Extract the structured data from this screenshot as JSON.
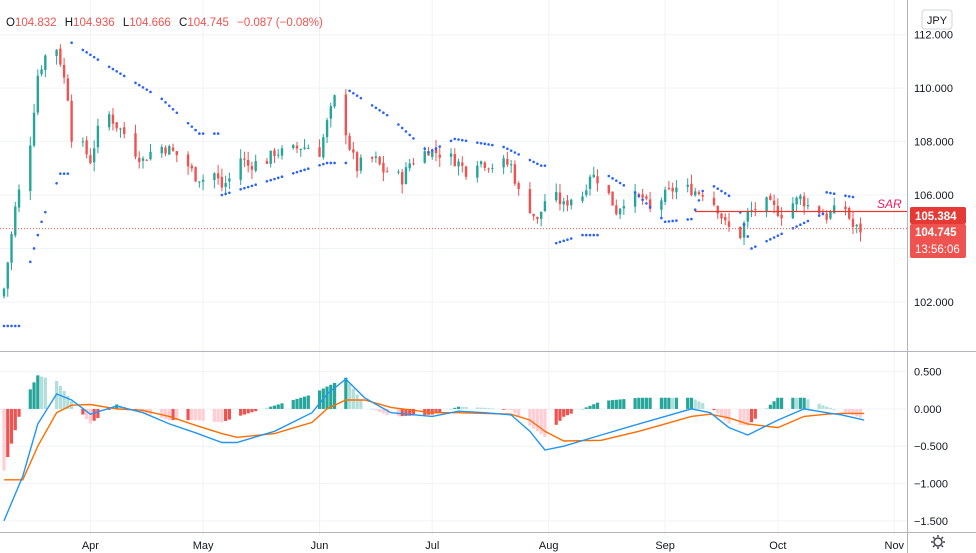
{
  "legend": {
    "open_key": "O",
    "open": "104.832",
    "high_key": "H",
    "high": "104.936",
    "low_key": "L",
    "low": "104.666",
    "close_key": "C",
    "close": "104.745",
    "change": "−0.087 (−0.08%)"
  },
  "currency_button": "JPY",
  "sar_label": "SAR",
  "badges": {
    "sar_value": "105.384",
    "last_price": "104.745",
    "countdown": "13:56:06"
  },
  "colors": {
    "up": "#26a69a",
    "down": "#ef5350",
    "sar": "#2962ff",
    "macd": "#2196f3",
    "signal": "#ff6d00",
    "hist_up_strong": "#26a69a",
    "hist_up_weak": "#b2dfdb",
    "hist_down_strong": "#ef5350",
    "hist_down_weak": "#ffcdd2",
    "sar_line": "#e53935",
    "last_price": "#ef5350",
    "grid": "#f0f3fa"
  },
  "settings_icon": "gear-icon",
  "chart_data": [
    {
      "type": "candlestick",
      "price_axis_ticks": [
        "102.000",
        "104.000",
        "106.000",
        "108.000",
        "110.000",
        "112.000"
      ],
      "x_tick_labels": [
        "Apr",
        "May",
        "Jun",
        "Jul",
        "Aug",
        "Sep",
        "Oct",
        "Nov"
      ],
      "ylim": [
        100.2,
        113.0
      ],
      "grid": true,
      "close_path": [
        [
          "2020-03-09",
          102.5
        ],
        [
          "2020-03-12",
          105.5
        ],
        [
          "2020-03-16",
          108.0
        ],
        [
          "2020-03-18",
          110.5
        ],
        [
          "2020-03-20",
          111.2
        ],
        [
          "2020-03-23",
          111.5
        ],
        [
          "2020-03-24",
          111.0
        ],
        [
          "2020-03-26",
          109.7
        ],
        [
          "2020-03-27",
          108.2
        ],
        [
          "2020-03-30",
          107.8
        ],
        [
          "2020-04-01",
          107.3
        ],
        [
          "2020-04-03",
          108.4
        ],
        [
          "2020-04-06",
          109.0
        ],
        [
          "2020-04-08",
          108.6
        ],
        [
          "2020-04-10",
          108.3
        ],
        [
          "2020-04-13",
          107.6
        ],
        [
          "2020-04-15",
          107.3
        ],
        [
          "2020-04-17",
          107.6
        ],
        [
          "2020-04-20",
          107.8
        ],
        [
          "2020-04-22",
          107.7
        ],
        [
          "2020-04-24",
          107.5
        ],
        [
          "2020-04-27",
          107.1
        ],
        [
          "2020-04-29",
          106.7
        ],
        [
          "2020-05-01",
          106.6
        ],
        [
          "2020-05-04",
          106.8
        ],
        [
          "2020-05-06",
          106.3
        ],
        [
          "2020-05-08",
          106.6
        ],
        [
          "2020-05-11",
          107.4
        ],
        [
          "2020-05-13",
          107.1
        ],
        [
          "2020-05-15",
          107.2
        ],
        [
          "2020-05-18",
          107.3
        ],
        [
          "2020-05-20",
          107.6
        ],
        [
          "2020-05-22",
          107.6
        ],
        [
          "2020-05-25",
          107.7
        ],
        [
          "2020-05-27",
          107.8
        ],
        [
          "2020-05-29",
          107.8
        ],
        [
          "2020-06-01",
          107.6
        ],
        [
          "2020-06-03",
          108.7
        ],
        [
          "2020-06-05",
          109.6
        ],
        [
          "2020-06-08",
          108.4
        ],
        [
          "2020-06-09",
          107.8
        ],
        [
          "2020-06-11",
          107.0
        ],
        [
          "2020-06-13",
          107.4
        ],
        [
          "2020-06-16",
          107.3
        ],
        [
          "2020-06-18",
          106.9
        ],
        [
          "2020-06-20",
          106.9
        ],
        [
          "2020-06-23",
          106.6
        ],
        [
          "2020-06-25",
          107.2
        ],
        [
          "2020-06-27",
          107.4
        ],
        [
          "2020-06-30",
          107.7
        ],
        [
          "2020-07-02",
          107.6
        ],
        [
          "2020-07-06",
          107.4
        ],
        [
          "2020-07-08",
          107.2
        ],
        [
          "2020-07-10",
          106.9
        ],
        [
          "2020-07-13",
          107.3
        ],
        [
          "2020-07-15",
          107.2
        ],
        [
          "2020-07-17",
          107.1
        ],
        [
          "2020-07-20",
          107.2
        ],
        [
          "2020-07-22",
          107.1
        ],
        [
          "2020-07-24",
          106.1
        ],
        [
          "2020-07-27",
          105.5
        ],
        [
          "2020-07-29",
          105.0
        ],
        [
          "2020-07-31",
          105.8
        ],
        [
          "2020-08-03",
          105.9
        ],
        [
          "2020-08-05",
          105.6
        ],
        [
          "2020-08-07",
          105.9
        ],
        [
          "2020-08-10",
          106.0
        ],
        [
          "2020-08-12",
          106.8
        ],
        [
          "2020-08-14",
          106.6
        ],
        [
          "2020-08-17",
          106.0
        ],
        [
          "2020-08-19",
          105.4
        ],
        [
          "2020-08-21",
          105.8
        ],
        [
          "2020-08-24",
          105.9
        ],
        [
          "2020-08-26",
          105.9
        ],
        [
          "2020-08-28",
          105.4
        ],
        [
          "2020-09-01",
          106.0
        ],
        [
          "2020-09-03",
          106.2
        ],
        [
          "2020-09-05",
          106.3
        ],
        [
          "2020-09-08",
          106.2
        ],
        [
          "2020-09-10",
          106.1
        ],
        [
          "2020-09-12",
          106.1
        ],
        [
          "2020-09-15",
          105.5
        ],
        [
          "2020-09-17",
          104.9
        ],
        [
          "2020-09-19",
          104.6
        ],
        [
          "2020-09-21",
          104.5
        ],
        [
          "2020-09-23",
          105.3
        ],
        [
          "2020-09-25",
          105.5
        ],
        [
          "2020-09-28",
          105.7
        ],
        [
          "2020-09-30",
          105.5
        ],
        [
          "2020-10-02",
          105.3
        ],
        [
          "2020-10-05",
          105.7
        ],
        [
          "2020-10-07",
          105.9
        ],
        [
          "2020-10-09",
          105.6
        ],
        [
          "2020-10-12",
          105.4
        ],
        [
          "2020-10-14",
          105.2
        ],
        [
          "2020-10-16",
          105.4
        ],
        [
          "2020-10-19",
          105.5
        ],
        [
          "2020-10-21",
          104.8
        ],
        [
          "2020-10-23",
          104.7
        ]
      ],
      "sar": [
        [
          "2020-03-09",
          101.1
        ],
        [
          "2020-03-16",
          103.5
        ],
        [
          "2020-03-19",
          105.0
        ],
        [
          "2020-03-24",
          106.8
        ],
        [
          "2020-03-27",
          111.7
        ],
        [
          "2020-04-06",
          110.8
        ],
        [
          "2020-04-20",
          109.6
        ],
        [
          "2020-04-30",
          108.3
        ],
        [
          "2020-05-06",
          106.0
        ],
        [
          "2020-05-20",
          106.6
        ],
        [
          "2020-06-03",
          107.2
        ],
        [
          "2020-06-09",
          109.9
        ],
        [
          "2020-06-20",
          108.9
        ],
        [
          "2020-06-30",
          107.6
        ],
        [
          "2020-07-07",
          108.1
        ],
        [
          "2020-07-20",
          107.8
        ],
        [
          "2020-07-30",
          107.1
        ],
        [
          "2020-08-03",
          104.2
        ],
        [
          "2020-08-10",
          104.5
        ],
        [
          "2020-08-16",
          106.8
        ],
        [
          "2020-08-24",
          106.1
        ],
        [
          "2020-09-01",
          105.0
        ],
        [
          "2020-09-08",
          105.1
        ],
        [
          "2020-09-12",
          106.5
        ],
        [
          "2020-09-20",
          105.8
        ],
        [
          "2020-09-24",
          104.0
        ],
        [
          "2020-10-13",
          105.3
        ],
        [
          "2020-10-14",
          106.1
        ],
        [
          "2020-10-22",
          105.9
        ]
      ],
      "sar_marker_value": 105.384,
      "last_price": 104.745
    },
    {
      "type": "macd",
      "y_tick_labels": [
        "0.500",
        "0.000",
        "−0.500",
        "−1.000",
        "−1.500"
      ],
      "ylim": [
        -1.65,
        0.75
      ],
      "grid": true,
      "macd": [
        [
          "2020-03-09",
          -1.5
        ],
        [
          "2020-03-14",
          -0.9
        ],
        [
          "2020-03-18",
          -0.2
        ],
        [
          "2020-03-23",
          0.2
        ],
        [
          "2020-03-27",
          0.12
        ],
        [
          "2020-04-01",
          -0.07
        ],
        [
          "2020-04-08",
          0.04
        ],
        [
          "2020-04-15",
          -0.05
        ],
        [
          "2020-04-22",
          -0.2
        ],
        [
          "2020-04-29",
          -0.32
        ],
        [
          "2020-05-06",
          -0.45
        ],
        [
          "2020-05-10",
          -0.45
        ],
        [
          "2020-05-20",
          -0.3
        ],
        [
          "2020-05-30",
          -0.05
        ],
        [
          "2020-06-03",
          0.2
        ],
        [
          "2020-06-08",
          0.4
        ],
        [
          "2020-06-13",
          0.15
        ],
        [
          "2020-06-20",
          -0.05
        ],
        [
          "2020-07-01",
          -0.1
        ],
        [
          "2020-07-08",
          -0.03
        ],
        [
          "2020-07-15",
          -0.05
        ],
        [
          "2020-07-22",
          -0.08
        ],
        [
          "2020-07-27",
          -0.3
        ],
        [
          "2020-07-31",
          -0.55
        ],
        [
          "2020-08-05",
          -0.5
        ],
        [
          "2020-08-15",
          -0.35
        ],
        [
          "2020-08-25",
          -0.2
        ],
        [
          "2020-09-01",
          -0.1
        ],
        [
          "2020-09-08",
          0.0
        ],
        [
          "2020-09-13",
          -0.05
        ],
        [
          "2020-09-18",
          -0.25
        ],
        [
          "2020-09-23",
          -0.35
        ],
        [
          "2020-10-01",
          -0.15
        ],
        [
          "2020-10-08",
          0.0
        ],
        [
          "2020-10-14",
          -0.05
        ],
        [
          "2020-10-18",
          -0.08
        ],
        [
          "2020-10-24",
          -0.15
        ]
      ],
      "signal": [
        [
          "2020-03-09",
          -0.95
        ],
        [
          "2020-03-14",
          -0.95
        ],
        [
          "2020-03-18",
          -0.5
        ],
        [
          "2020-03-23",
          -0.05
        ],
        [
          "2020-03-27",
          0.05
        ],
        [
          "2020-04-01",
          0.06
        ],
        [
          "2020-04-08",
          0.0
        ],
        [
          "2020-04-15",
          -0.02
        ],
        [
          "2020-04-22",
          -0.1
        ],
        [
          "2020-04-29",
          -0.22
        ],
        [
          "2020-05-06",
          -0.33
        ],
        [
          "2020-05-10",
          -0.38
        ],
        [
          "2020-05-20",
          -0.33
        ],
        [
          "2020-05-30",
          -0.18
        ],
        [
          "2020-06-03",
          0.0
        ],
        [
          "2020-06-08",
          0.12
        ],
        [
          "2020-06-13",
          0.12
        ],
        [
          "2020-06-20",
          0.02
        ],
        [
          "2020-07-01",
          -0.05
        ],
        [
          "2020-07-08",
          -0.05
        ],
        [
          "2020-07-15",
          -0.06
        ],
        [
          "2020-07-22",
          -0.07
        ],
        [
          "2020-07-27",
          -0.15
        ],
        [
          "2020-07-31",
          -0.3
        ],
        [
          "2020-08-05",
          -0.43
        ],
        [
          "2020-08-15",
          -0.42
        ],
        [
          "2020-08-25",
          -0.3
        ],
        [
          "2020-09-01",
          -0.2
        ],
        [
          "2020-09-08",
          -0.1
        ],
        [
          "2020-09-13",
          -0.07
        ],
        [
          "2020-09-18",
          -0.12
        ],
        [
          "2020-09-23",
          -0.2
        ],
        [
          "2020-10-01",
          -0.25
        ],
        [
          "2020-10-08",
          -0.1
        ],
        [
          "2020-10-14",
          -0.07
        ],
        [
          "2020-10-18",
          -0.06
        ],
        [
          "2020-10-24",
          -0.06
        ]
      ]
    }
  ]
}
